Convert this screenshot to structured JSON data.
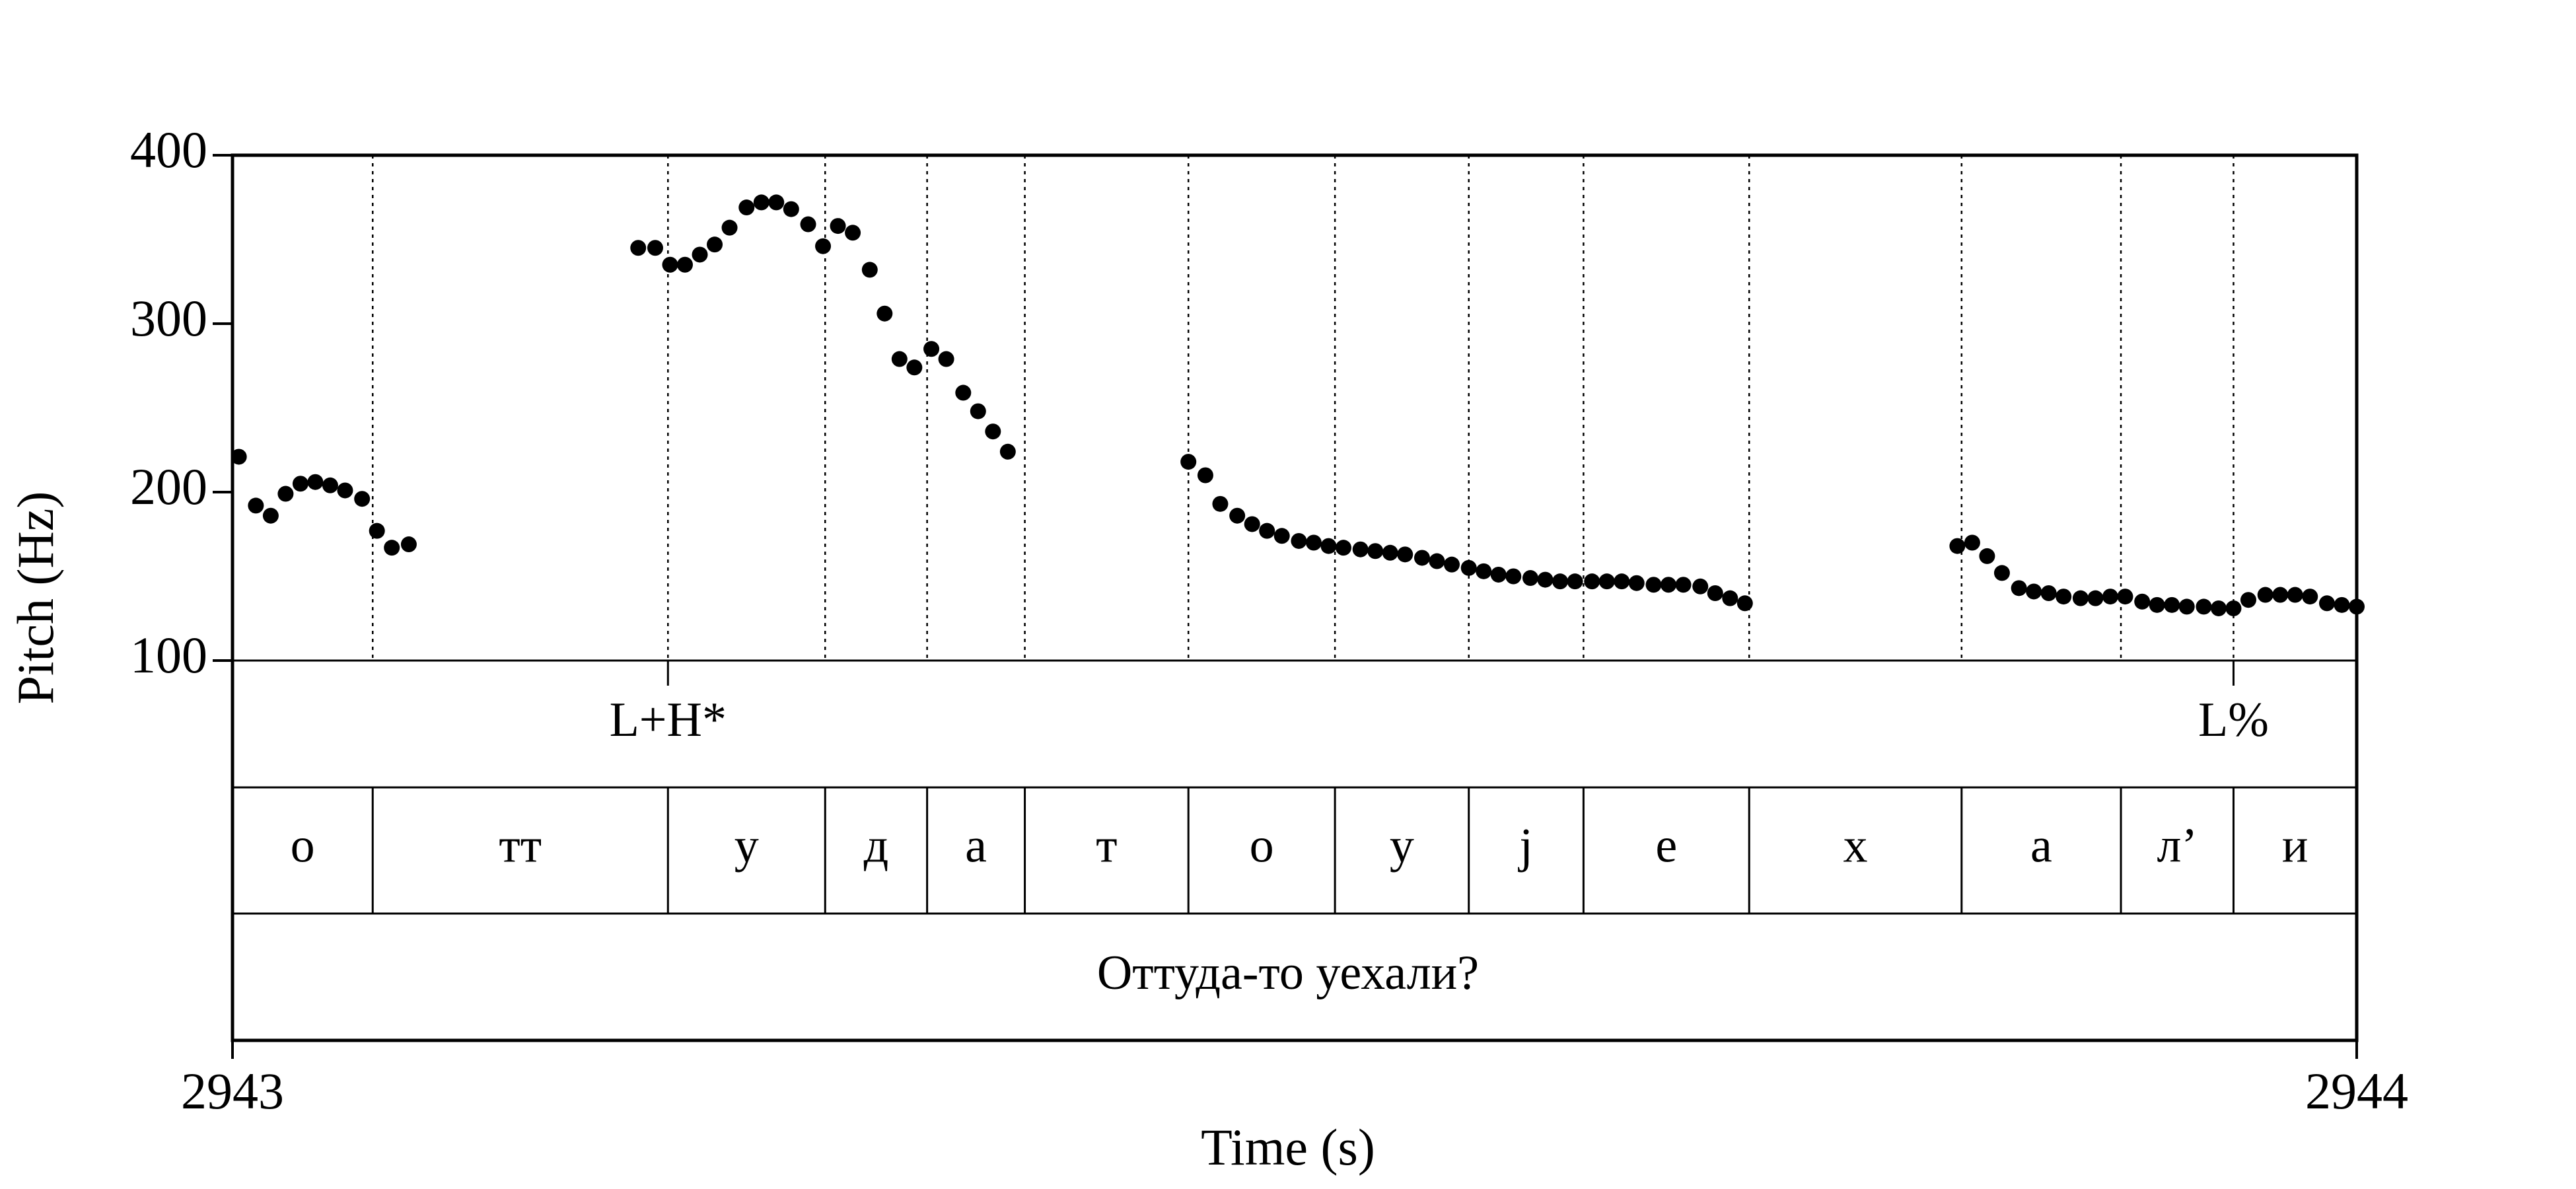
{
  "chart_data": {
    "type": "scatter",
    "title": "",
    "xlabel": "Time (s)",
    "ylabel": "Pitch (Hz)",
    "xlim": [
      2943,
      2944
    ],
    "ylim": [
      100,
      400
    ],
    "x_tick_labels": [
      "2943",
      "2944"
    ],
    "y_ticks": [
      100,
      200,
      300,
      400
    ],
    "grid": false,
    "series": [
      {
        "values": [
          [
            2943.003,
            221
          ],
          [
            2943.011,
            192
          ],
          [
            2943.018,
            186
          ],
          [
            2943.025,
            199
          ],
          [
            2943.032,
            205
          ],
          [
            2943.039,
            206
          ],
          [
            2943.046,
            204
          ],
          [
            2943.053,
            201
          ],
          [
            2943.061,
            196
          ],
          [
            2943.068,
            177
          ],
          [
            2943.075,
            167
          ],
          [
            2943.083,
            169
          ],
          [
            2943.191,
            345
          ],
          [
            2943.199,
            345
          ],
          [
            2943.206,
            335
          ],
          [
            2943.213,
            335
          ],
          [
            2943.22,
            341
          ],
          [
            2943.227,
            347
          ],
          [
            2943.234,
            357
          ],
          [
            2943.242,
            369
          ],
          [
            2943.249,
            372
          ],
          [
            2943.256,
            372
          ],
          [
            2943.263,
            368
          ],
          [
            2943.271,
            359
          ],
          [
            2943.278,
            346
          ],
          [
            2943.285,
            358
          ],
          [
            2943.292,
            354
          ],
          [
            2943.3,
            332
          ],
          [
            2943.307,
            306
          ],
          [
            2943.314,
            279
          ],
          [
            2943.321,
            274
          ],
          [
            2943.329,
            285
          ],
          [
            2943.336,
            279
          ],
          [
            2943.344,
            259
          ],
          [
            2943.351,
            248
          ],
          [
            2943.358,
            236
          ],
          [
            2943.365,
            224
          ],
          [
            2943.45,
            218
          ],
          [
            2943.458,
            210
          ],
          [
            2943.465,
            193
          ],
          [
            2943.473,
            186
          ],
          [
            2943.48,
            181
          ],
          [
            2943.487,
            177
          ],
          [
            2943.494,
            174
          ],
          [
            2943.502,
            171
          ],
          [
            2943.509,
            170
          ],
          [
            2943.516,
            168
          ],
          [
            2943.523,
            167
          ],
          [
            2943.531,
            166
          ],
          [
            2943.538,
            165
          ],
          [
            2943.545,
            164
          ],
          [
            2943.552,
            163
          ],
          [
            2943.56,
            161
          ],
          [
            2943.567,
            159
          ],
          [
            2943.574,
            157
          ],
          [
            2943.582,
            155
          ],
          [
            2943.589,
            153
          ],
          [
            2943.596,
            151
          ],
          [
            2943.603,
            150
          ],
          [
            2943.611,
            149
          ],
          [
            2943.618,
            148
          ],
          [
            2943.625,
            147
          ],
          [
            2943.632,
            147
          ],
          [
            2943.64,
            147
          ],
          [
            2943.647,
            147
          ],
          [
            2943.654,
            147
          ],
          [
            2943.661,
            146
          ],
          [
            2943.669,
            145
          ],
          [
            2943.676,
            145
          ],
          [
            2943.683,
            145
          ],
          [
            2943.691,
            144
          ],
          [
            2943.698,
            140
          ],
          [
            2943.705,
            137
          ],
          [
            2943.712,
            134
          ],
          [
            2943.812,
            168
          ],
          [
            2943.819,
            170
          ],
          [
            2943.826,
            162
          ],
          [
            2943.833,
            152
          ],
          [
            2943.841,
            143
          ],
          [
            2943.848,
            141
          ],
          [
            2943.855,
            140
          ],
          [
            2943.862,
            138
          ],
          [
            2943.87,
            137
          ],
          [
            2943.877,
            137
          ],
          [
            2943.884,
            138
          ],
          [
            2943.891,
            138
          ],
          [
            2943.899,
            135
          ],
          [
            2943.906,
            133
          ],
          [
            2943.913,
            133
          ],
          [
            2943.92,
            132
          ],
          [
            2943.928,
            132
          ],
          [
            2943.935,
            131
          ],
          [
            2943.942,
            131
          ],
          [
            2943.949,
            136
          ],
          [
            2943.957,
            139
          ],
          [
            2943.964,
            139
          ],
          [
            2943.971,
            139
          ],
          [
            2943.978,
            138
          ],
          [
            2943.986,
            134
          ],
          [
            2943.993,
            133
          ],
          [
            2944.0,
            132
          ]
        ]
      }
    ],
    "segment_boundaries": [
      2943.066,
      2943.205,
      2943.279,
      2943.327,
      2943.373,
      2943.45,
      2943.519,
      2943.582,
      2943.636,
      2943.714,
      2943.814,
      2943.889,
      2943.942
    ],
    "tones": [
      {
        "label": "L+H*",
        "time": 2943.205
      },
      {
        "label": "L%",
        "time": 2943.942
      }
    ],
    "segments": [
      "о",
      "тт",
      "у",
      "д",
      "а",
      "т",
      "о",
      "у",
      "j",
      "е",
      "х",
      "а",
      "л’",
      "и"
    ],
    "utterance": "Оттуда-то уехали?"
  }
}
